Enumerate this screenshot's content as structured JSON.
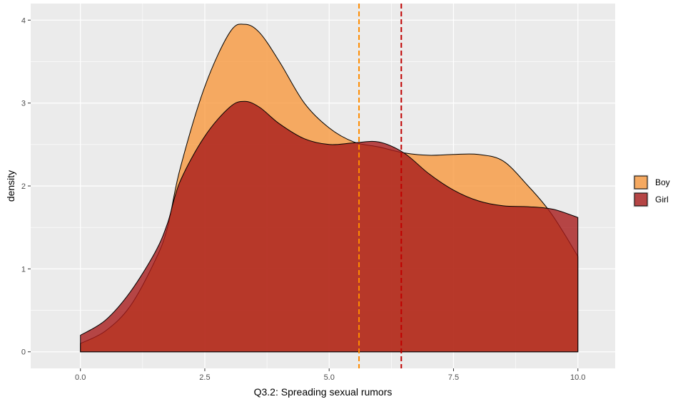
{
  "chart_data": {
    "type": "area",
    "xlabel": "Q3.2: Spreading sexual rumors",
    "ylabel": "density",
    "xlim": [
      -1.0,
      10.75
    ],
    "ylim": [
      -0.2,
      4.2
    ],
    "x_ticks": [
      0.0,
      2.5,
      5.0,
      7.5,
      10.0
    ],
    "x_tick_labels": [
      "0.0",
      "2.5",
      "5.0",
      "7.5",
      "10.0"
    ],
    "y_ticks": [
      0,
      1,
      2,
      3,
      4
    ],
    "y_tick_labels": [
      "0",
      "1",
      "2",
      "3",
      "4"
    ],
    "grid": true,
    "legend_position": "right",
    "series": [
      {
        "name": "Boy",
        "color": "#f7993f",
        "opacity": 0.8,
        "mean": 5.6,
        "points": [
          [
            0.0,
            0.1
          ],
          [
            0.5,
            0.25
          ],
          [
            1.0,
            0.55
          ],
          [
            1.5,
            1.1
          ],
          [
            1.75,
            1.5
          ],
          [
            2.0,
            2.2
          ],
          [
            2.5,
            3.2
          ],
          [
            3.0,
            3.85
          ],
          [
            3.3,
            3.95
          ],
          [
            3.6,
            3.85
          ],
          [
            4.0,
            3.5
          ],
          [
            4.5,
            3.0
          ],
          [
            5.0,
            2.7
          ],
          [
            5.5,
            2.53
          ],
          [
            6.0,
            2.47
          ],
          [
            6.5,
            2.4
          ],
          [
            7.0,
            2.37
          ],
          [
            7.5,
            2.38
          ],
          [
            8.0,
            2.38
          ],
          [
            8.5,
            2.3
          ],
          [
            9.0,
            2.0
          ],
          [
            9.4,
            1.72
          ],
          [
            9.7,
            1.45
          ],
          [
            10.0,
            1.15
          ]
        ]
      },
      {
        "name": "Girl",
        "color": "#a81c1c",
        "opacity": 0.8,
        "mean": 6.45,
        "points": [
          [
            0.0,
            0.2
          ],
          [
            0.5,
            0.38
          ],
          [
            1.0,
            0.72
          ],
          [
            1.5,
            1.2
          ],
          [
            1.75,
            1.55
          ],
          [
            2.0,
            2.05
          ],
          [
            2.5,
            2.6
          ],
          [
            3.0,
            2.95
          ],
          [
            3.3,
            3.02
          ],
          [
            3.6,
            2.95
          ],
          [
            4.0,
            2.75
          ],
          [
            4.5,
            2.57
          ],
          [
            5.0,
            2.5
          ],
          [
            5.5,
            2.52
          ],
          [
            6.0,
            2.53
          ],
          [
            6.5,
            2.4
          ],
          [
            7.0,
            2.15
          ],
          [
            7.5,
            1.95
          ],
          [
            8.0,
            1.82
          ],
          [
            8.5,
            1.76
          ],
          [
            9.0,
            1.75
          ],
          [
            9.5,
            1.72
          ],
          [
            10.0,
            1.62
          ]
        ]
      }
    ]
  }
}
